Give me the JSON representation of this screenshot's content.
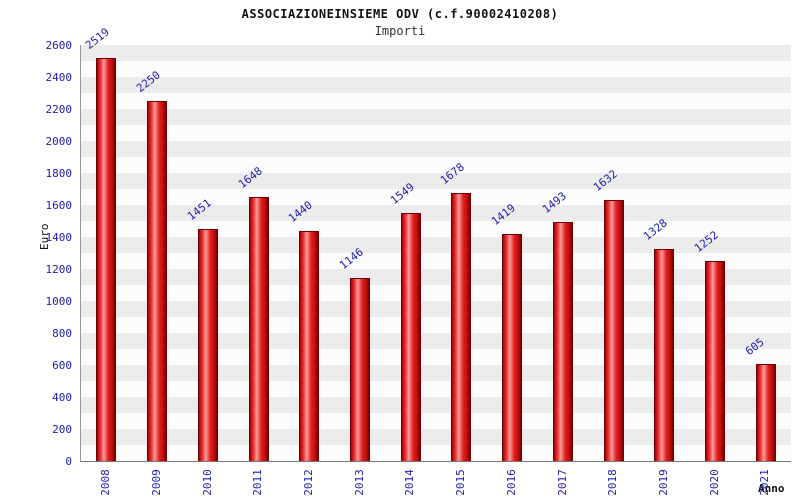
{
  "chart_data": {
    "type": "bar",
    "title": "ASSOCIAZIONEINSIEME ODV (c.f.90002410208)",
    "subtitle": "Importi",
    "ylabel": "Euro",
    "xlabel": "Anno",
    "categories": [
      "2008",
      "2009",
      "2010",
      "2011",
      "2012",
      "2013",
      "2014",
      "2015",
      "2016",
      "2017",
      "2018",
      "2019",
      "2020",
      "2021"
    ],
    "values": [
      2519,
      2250,
      1451,
      1648,
      1440,
      1146,
      1549,
      1678,
      1419,
      1493,
      1632,
      1328,
      1252,
      605
    ],
    "ylim": [
      0,
      2600
    ],
    "ytick_step": 200,
    "grid": "striped-bands",
    "legend": "none",
    "bar_color": "#e02020",
    "label_color": "#2020aa"
  }
}
